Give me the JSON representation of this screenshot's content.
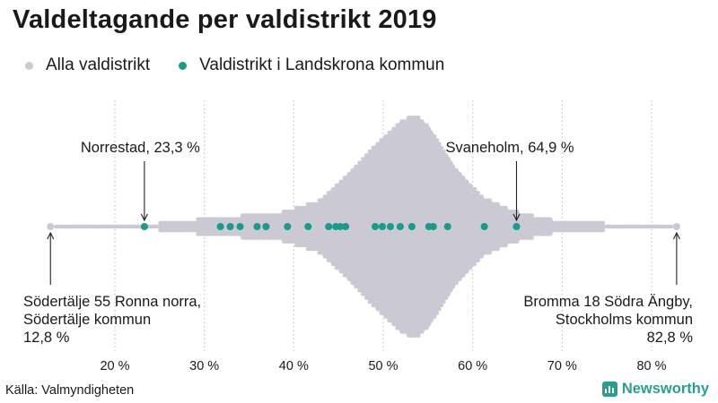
{
  "chart_data": {
    "type": "scatter",
    "subtype": "beeswarm",
    "title": "Valdeltagande per valdistrikt 2019",
    "legend": [
      {
        "label": "Alla valdistrikt",
        "color": "#cbcad4"
      },
      {
        "label": "Valdistrikt i Landskrona kommun",
        "color": "#1a9a8a"
      }
    ],
    "x_ticks": [
      "20 %",
      "30 %",
      "40 %",
      "50 %",
      "60 %",
      "70 %",
      "80 %"
    ],
    "x_tick_values": [
      20,
      30,
      40,
      50,
      60,
      70,
      80
    ],
    "xlim": [
      12,
      84
    ],
    "highlight_values": [
      23.3,
      31.8,
      32.9,
      34.0,
      35.9,
      36.9,
      39.3,
      41.6,
      43.9,
      44.7,
      45.2,
      45.8,
      49.1,
      49.9,
      50.8,
      51.9,
      53.2,
      55.1,
      55.6,
      57.2,
      61.3,
      64.9
    ],
    "annotations": [
      {
        "label": "Norrestad, 23,3 %",
        "value": 23.3
      },
      {
        "label": "Svaneholm, 64,9 %",
        "value": 64.9
      },
      {
        "label_lines": [
          "Södertälje 55 Ronna norra,",
          "Södertälje kommun",
          "12,8 %"
        ],
        "value": 12.8
      },
      {
        "label_lines": [
          "Bromma 18 Södra Ängby,",
          "Stockholms kommun",
          "82,8 %"
        ],
        "value": 82.8
      }
    ],
    "distribution_extent": [
      12.8,
      82.8
    ],
    "distribution_peak": 53.5
  },
  "source": "Källa: Valmyndigheten",
  "brand": "Newsworthy",
  "colors": {
    "all": "#cbcad4",
    "highlight": "#1a9a8a",
    "brand": "#2b9e8c",
    "grid": "#bdbdbd"
  }
}
